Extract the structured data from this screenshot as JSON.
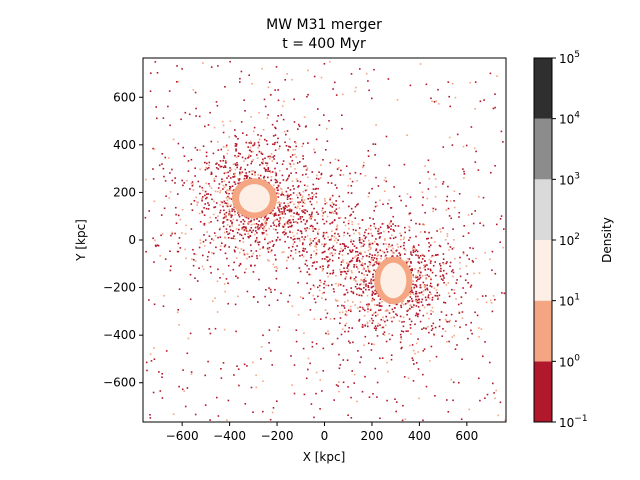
{
  "chart_data": {
    "type": "heatmap",
    "subtype": "filled-contour density map",
    "title": "MW M31 merger",
    "subtitle": "t = 400 Myr",
    "xlabel": "X [kpc]",
    "ylabel": "Y [kpc]",
    "xlim": [
      -765,
      765
    ],
    "ylim": [
      -765,
      765
    ],
    "xticks": [
      -600,
      -400,
      -200,
      0,
      200,
      400,
      600
    ],
    "yticks": [
      -600,
      -400,
      -200,
      0,
      200,
      400,
      600
    ],
    "xtick_labels": [
      "−600",
      "−400",
      "−200",
      "0",
      "200",
      "400",
      "600"
    ],
    "ytick_labels": [
      "−600",
      "−400",
      "−200",
      "0",
      "200",
      "400",
      "600"
    ],
    "grid": false,
    "colorbar": {
      "label": "Density",
      "scale": "log",
      "levels": [
        0.1,
        1,
        10,
        100,
        1000,
        10000,
        100000
      ],
      "tick_labels": [
        {
          "base": "10",
          "exp": "−1"
        },
        {
          "base": "10",
          "exp": "0"
        },
        {
          "base": "10",
          "exp": "1"
        },
        {
          "base": "10",
          "exp": "2"
        },
        {
          "base": "10",
          "exp": "3"
        },
        {
          "base": "10",
          "exp": "4"
        },
        {
          "base": "10",
          "exp": "5"
        }
      ],
      "colors": [
        "#b2182b",
        "#f4a582",
        "#fdefe6",
        "#dadada",
        "#8c8c8c",
        "#2f2f2f"
      ]
    },
    "galaxies": [
      {
        "center": [
          -295,
          175
        ],
        "core_semi_axes": [
          65,
          60
        ],
        "halo_semi_axes": [
          95,
          85
        ],
        "core_band": [
          10,
          100
        ],
        "halo_band": [
          1,
          10
        ]
      },
      {
        "center": [
          290,
          -170
        ],
        "core_semi_axes": [
          55,
          75
        ],
        "halo_semi_axes": [
          80,
          100
        ],
        "core_band": [
          10,
          100
        ],
        "halo_band": [
          1,
          10
        ]
      }
    ],
    "scatter_extent_kpc": 760
  }
}
